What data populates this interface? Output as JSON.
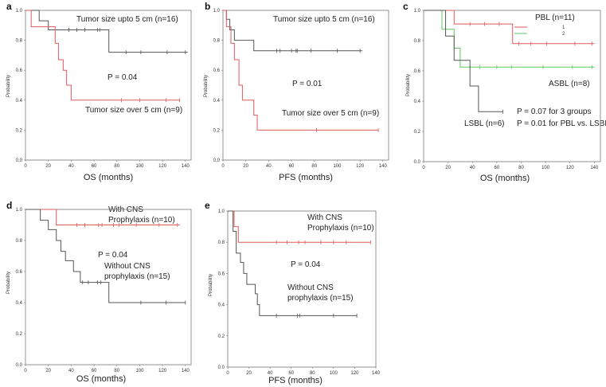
{
  "chart_data": [
    {
      "type": "line",
      "panel": "a",
      "title": "",
      "xlabel": "OS (months)",
      "ylabel": "Probability",
      "xlim": [
        0,
        145
      ],
      "ylim": [
        0,
        1.0
      ],
      "xticks": [
        0,
        20,
        40,
        60,
        80,
        100,
        120,
        140
      ],
      "yticks": [
        0.0,
        0.2,
        0.4,
        0.6,
        0.8,
        1.0
      ],
      "series": [
        {
          "name": "Tumor size upto 5 cm (n=16)",
          "color": "#555555",
          "steps": [
            [
              0,
              1.0
            ],
            [
              12,
              0.93
            ],
            [
              20,
              0.87
            ],
            [
              52,
              0.87
            ],
            [
              73,
              0.72
            ],
            [
              142,
              0.72
            ]
          ],
          "censored": [
            [
              38,
              0.87
            ],
            [
              45,
              0.87
            ],
            [
              52,
              0.87
            ],
            [
              63,
              0.87
            ],
            [
              65,
              0.87
            ],
            [
              88,
              0.72
            ],
            [
              101,
              0.72
            ],
            [
              124,
              0.72
            ],
            [
              140,
              0.72
            ]
          ]
        },
        {
          "name": "Tumor size over 5 cm (n=9)",
          "color": "#e05a5a",
          "steps": [
            [
              0,
              1.0
            ],
            [
              5,
              0.89
            ],
            [
              26,
              0.78
            ],
            [
              29,
              0.67
            ],
            [
              33,
              0.6
            ],
            [
              36,
              0.5
            ],
            [
              40,
              0.4
            ],
            [
              135,
              0.4
            ]
          ],
          "censored": [
            [
              84,
              0.4
            ],
            [
              100,
              0.4
            ],
            [
              123,
              0.4
            ],
            [
              135,
              0.4
            ]
          ]
        }
      ],
      "annotations": [
        "Tumor size upto 5 cm (n=16)",
        "P = 0.04",
        "Tumor size over 5 cm (n=9)"
      ]
    },
    {
      "type": "line",
      "panel": "b",
      "title": "",
      "xlabel": "PFS (months)",
      "ylabel": "Probability",
      "xlim": [
        0,
        145
      ],
      "ylim": [
        0,
        1.0
      ],
      "xticks": [
        0,
        20,
        40,
        60,
        80,
        100,
        120,
        140
      ],
      "yticks": [
        0.0,
        0.2,
        0.4,
        0.6,
        0.8,
        1.0
      ],
      "series": [
        {
          "name": "Tumor size upto 5 cm (n=16)",
          "color": "#555555",
          "steps": [
            [
              0,
              1.0
            ],
            [
              3,
              0.94
            ],
            [
              6,
              0.87
            ],
            [
              10,
              0.8
            ],
            [
              27,
              0.73
            ],
            [
              122,
              0.73
            ]
          ],
          "censored": [
            [
              47,
              0.73
            ],
            [
              50,
              0.73
            ],
            [
              60,
              0.73
            ],
            [
              64,
              0.73
            ],
            [
              65,
              0.73
            ],
            [
              77,
              0.73
            ],
            [
              100,
              0.73
            ],
            [
              120,
              0.73
            ]
          ]
        },
        {
          "name": "Tumor size over 5 cm (n=9)",
          "color": "#e05a5a",
          "steps": [
            [
              0,
              1.0
            ],
            [
              3,
              0.89
            ],
            [
              7,
              0.78
            ],
            [
              10,
              0.67
            ],
            [
              14,
              0.5
            ],
            [
              17,
              0.4
            ],
            [
              27,
              0.3
            ],
            [
              30,
              0.2
            ],
            [
              136,
              0.2
            ]
          ],
          "censored": [
            [
              82,
              0.2
            ],
            [
              136,
              0.2
            ]
          ]
        }
      ],
      "annotations": [
        "Tumor size upto 5 cm (n=16)",
        "P = 0.01",
        "Tumor size over 5 cm (n=9)"
      ]
    },
    {
      "type": "line",
      "panel": "c",
      "title": "",
      "xlabel": "OS (months)",
      "ylabel": "Probability",
      "xlim": [
        0,
        145
      ],
      "ylim": [
        0,
        1.0
      ],
      "xticks": [
        0,
        20,
        40,
        60,
        80,
        100,
        120,
        140
      ],
      "yticks": [
        0.0,
        0.2,
        0.4,
        0.6,
        0.8,
        1.0
      ],
      "legend_title": "PBL (n=11)",
      "legend": [
        "1",
        "2"
      ],
      "series": [
        {
          "name": "PBL",
          "legend_label": "1",
          "color": "#e05a5a",
          "steps": [
            [
              0,
              1.0
            ],
            [
              25,
              0.91
            ],
            [
              73,
              0.78
            ],
            [
              140,
              0.78
            ]
          ],
          "censored": [
            [
              38,
              0.91
            ],
            [
              50,
              0.91
            ],
            [
              62,
              0.91
            ],
            [
              78,
              0.78
            ],
            [
              88,
              0.78
            ],
            [
              101,
              0.78
            ],
            [
              124,
              0.78
            ],
            [
              138,
              0.78
            ]
          ]
        },
        {
          "name": "ASBL",
          "legend_label": "2",
          "color": "#5cc85c",
          "steps": [
            [
              0,
              1.0
            ],
            [
              15,
              0.875
            ],
            [
              25,
              0.75
            ],
            [
              30,
              0.625
            ],
            [
              140,
              0.625
            ]
          ],
          "censored": [
            [
              38,
              0.625
            ],
            [
              46,
              0.625
            ],
            [
              60,
              0.625
            ],
            [
              72,
              0.625
            ],
            [
              98,
              0.625
            ],
            [
              122,
              0.625
            ],
            [
              138,
              0.625
            ]
          ]
        },
        {
          "name": "LSBL",
          "color": "#555555",
          "steps": [
            [
              0,
              1.0
            ],
            [
              18,
              0.83
            ],
            [
              25,
              0.67
            ],
            [
              38,
              0.5
            ],
            [
              45,
              0.33
            ],
            [
              65,
              0.33
            ]
          ],
          "censored": [
            [
              65,
              0.33
            ]
          ]
        }
      ],
      "annotations": [
        "ASBL (n=8)",
        "LSBL (n=6)",
        "P = 0.07 for 3 groups",
        "P = 0.01 for PBL vs. LSBL"
      ]
    },
    {
      "type": "line",
      "panel": "d",
      "title": "",
      "xlabel": "OS (months)",
      "ylabel": "Probability",
      "xlim": [
        0,
        145
      ],
      "ylim": [
        0,
        1.0
      ],
      "xticks": [
        0,
        20,
        40,
        60,
        80,
        100,
        120,
        140
      ],
      "yticks": [
        0.0,
        0.2,
        0.4,
        0.6,
        0.8,
        1.0
      ],
      "series": [
        {
          "name": "With CNS Prophylaxis (n=10)",
          "color": "#e05a5a",
          "steps": [
            [
              0,
              1.0
            ],
            [
              27,
              0.9
            ],
            [
              135,
              0.9
            ]
          ],
          "censored": [
            [
              45,
              0.9
            ],
            [
              52,
              0.9
            ],
            [
              64,
              0.9
            ],
            [
              67,
              0.9
            ],
            [
              77,
              0.9
            ],
            [
              82,
              0.9
            ],
            [
              97,
              0.9
            ],
            [
              117,
              0.9
            ],
            [
              133,
              0.9
            ]
          ]
        },
        {
          "name": "Without CNS prophylaxis (n=15)",
          "color": "#555555",
          "steps": [
            [
              0,
              1.0
            ],
            [
              13,
              0.93
            ],
            [
              20,
              0.87
            ],
            [
              27,
              0.8
            ],
            [
              31,
              0.73
            ],
            [
              35,
              0.67
            ],
            [
              42,
              0.6
            ],
            [
              48,
              0.53
            ],
            [
              73,
              0.4
            ],
            [
              140,
              0.4
            ]
          ],
          "censored": [
            [
              50,
              0.53
            ],
            [
              55,
              0.53
            ],
            [
              63,
              0.53
            ],
            [
              66,
              0.53
            ],
            [
              101,
              0.4
            ],
            [
              123,
              0.4
            ],
            [
              140,
              0.4
            ]
          ]
        }
      ],
      "annotations": [
        "With CNS",
        "Prophylaxis (n=10)",
        "P = 0.04",
        "Without CNS",
        "prophylaxis (n=15)"
      ]
    },
    {
      "type": "line",
      "panel": "e",
      "title": "",
      "xlabel": "PFS (months)",
      "ylabel": "Probability",
      "xlim": [
        0,
        140
      ],
      "ylim": [
        0,
        1.0
      ],
      "xticks": [
        0,
        20,
        40,
        60,
        80,
        100,
        120,
        140
      ],
      "yticks": [
        0.0,
        0.2,
        0.4,
        0.6,
        0.8,
        1.0
      ],
      "series": [
        {
          "name": "With CNS Prophylaxis (n=10)",
          "color": "#e05a5a",
          "steps": [
            [
              0,
              1.0
            ],
            [
              6,
              0.9
            ],
            [
              10,
              0.8
            ],
            [
              135,
              0.8
            ]
          ],
          "censored": [
            [
              46,
              0.8
            ],
            [
              56,
              0.8
            ],
            [
              67,
              0.8
            ],
            [
              73,
              0.8
            ],
            [
              88,
              0.8
            ],
            [
              100,
              0.8
            ],
            [
              112,
              0.8
            ],
            [
              135,
              0.8
            ]
          ]
        },
        {
          "name": "Without CNS prophylaxis (n=15)",
          "color": "#555555",
          "steps": [
            [
              0,
              1.0
            ],
            [
              5,
              0.87
            ],
            [
              8,
              0.73
            ],
            [
              12,
              0.67
            ],
            [
              15,
              0.6
            ],
            [
              18,
              0.53
            ],
            [
              26,
              0.47
            ],
            [
              28,
              0.4
            ],
            [
              30,
              0.33
            ],
            [
              122,
              0.33
            ]
          ],
          "censored": [
            [
              46,
              0.33
            ],
            [
              66,
              0.33
            ],
            [
              68,
              0.33
            ],
            [
              100,
              0.33
            ],
            [
              122,
              0.33
            ]
          ]
        }
      ],
      "annotations": [
        "With CNS",
        "Prophylaxis (n=10)",
        "P = 0.04",
        "Without CNS",
        "prophylaxis (n=15)"
      ]
    }
  ]
}
